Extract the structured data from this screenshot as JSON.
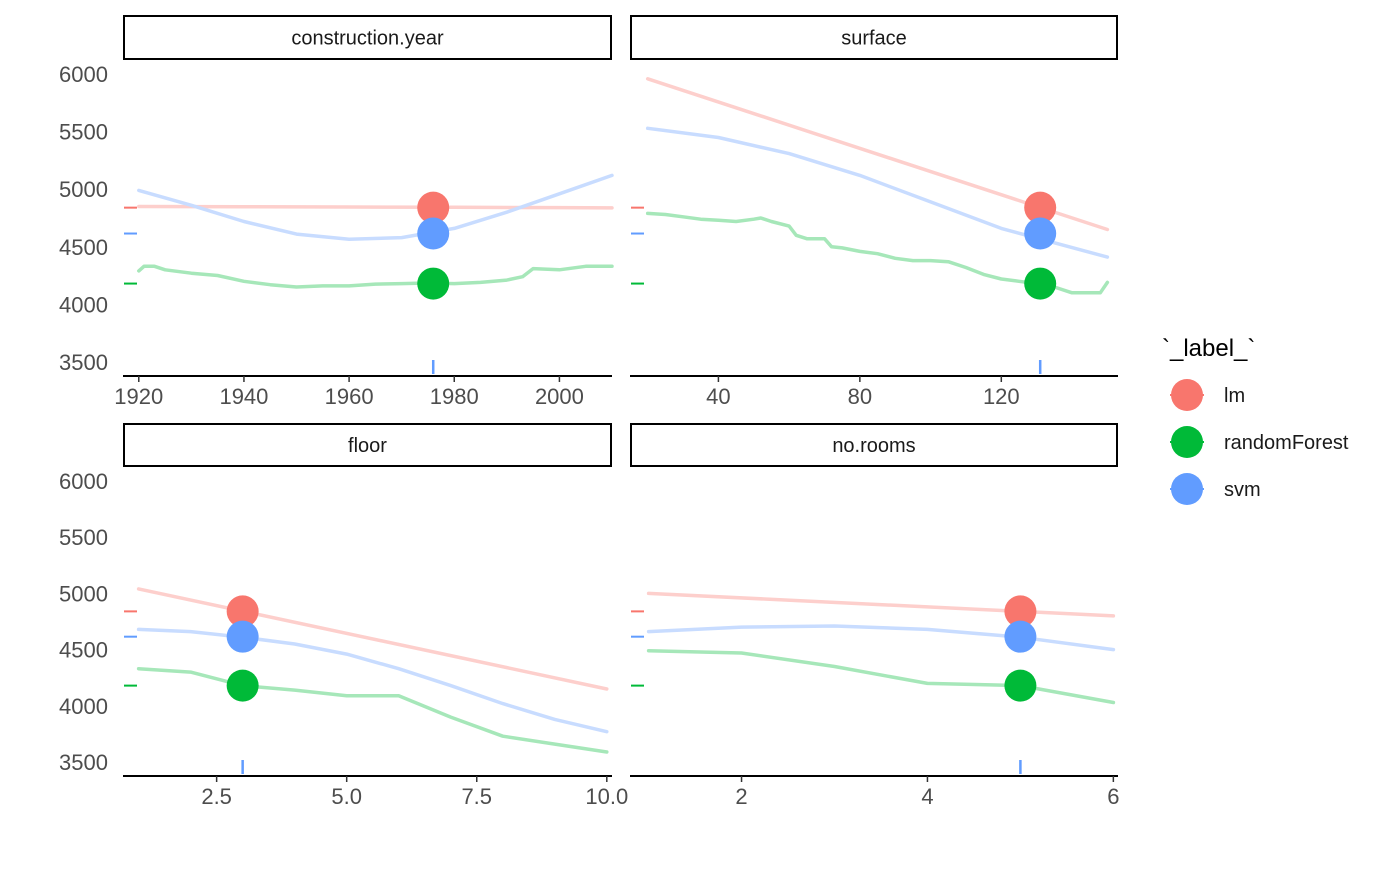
{
  "chart_data": {
    "type": "line",
    "y_axis": {
      "ylim": [
        3500,
        6000
      ],
      "ticks": [
        3500,
        4000,
        4500,
        5000,
        5500,
        6000
      ]
    },
    "legend": {
      "title": "`_label_`",
      "placement": "right",
      "entries": [
        {
          "name": "lm",
          "color": "#F8766D"
        },
        {
          "name": "randomForest",
          "color": "#00BA38"
        },
        {
          "name": "svm",
          "color": "#619CFF"
        }
      ]
    },
    "panels": [
      {
        "title": "construction.year",
        "xlim": [
          1917,
          2010
        ],
        "x_ticks": [
          1920,
          1940,
          1960,
          1980,
          2000
        ],
        "x_tick_labels": [
          "1920",
          "1940",
          "1960",
          "1980",
          "2000"
        ],
        "observation_x": 1976,
        "series": [
          {
            "name": "lm",
            "x": [
              1920,
              1940,
              1960,
              1980,
              2000,
              2010
            ],
            "y": [
              4850,
              4848,
              4846,
              4843,
              4840,
              4838
            ]
          },
          {
            "name": "svm",
            "x": [
              1920,
              1930,
              1940,
              1950,
              1960,
              1970,
              1980,
              1990,
              2000,
              2010
            ],
            "y": [
              4990,
              4860,
              4720,
              4610,
              4565,
              4580,
              4660,
              4800,
              4960,
              5120
            ]
          },
          {
            "name": "randomForest",
            "x": [
              1920,
              1921,
              1923,
              1925,
              1930,
              1935,
              1940,
              1945,
              1950,
              1955,
              1960,
              1965,
              1970,
              1975,
              1980,
              1985,
              1990,
              1993,
              1995,
              2000,
              2005,
              2010
            ],
            "y": [
              4290,
              4330,
              4330,
              4300,
              4270,
              4250,
              4200,
              4170,
              4150,
              4160,
              4160,
              4175,
              4180,
              4185,
              4180,
              4190,
              4210,
              4240,
              4310,
              4300,
              4330,
              4330
            ]
          }
        ],
        "points": [
          {
            "name": "lm",
            "x": 1976,
            "y": 4840
          },
          {
            "name": "svm",
            "x": 1976,
            "y": 4615
          },
          {
            "name": "randomForest",
            "x": 1976,
            "y": 4180
          }
        ]
      },
      {
        "title": "surface",
        "xlim": [
          15,
          153
        ],
        "x_ticks": [
          40,
          80,
          120
        ],
        "x_tick_labels": [
          "40",
          "80",
          "120"
        ],
        "observation_x": 131,
        "series": [
          {
            "name": "lm",
            "x": [
              20,
              150
            ],
            "y": [
              5960,
              4650
            ]
          },
          {
            "name": "svm",
            "x": [
              20,
              40,
              60,
              80,
              100,
              120,
              150
            ],
            "y": [
              5530,
              5450,
              5310,
              5120,
              4890,
              4660,
              4410
            ]
          },
          {
            "name": "randomForest",
            "x": [
              20,
              25,
              30,
              35,
              40,
              45,
              50,
              52,
              55,
              60,
              62,
              65,
              70,
              72,
              75,
              80,
              85,
              90,
              95,
              100,
              105,
              110,
              115,
              120,
              125,
              130,
              135,
              140,
              145,
              148,
              150
            ],
            "y": [
              4790,
              4780,
              4760,
              4740,
              4730,
              4720,
              4740,
              4750,
              4720,
              4680,
              4600,
              4570,
              4570,
              4500,
              4490,
              4460,
              4440,
              4400,
              4380,
              4380,
              4370,
              4320,
              4260,
              4220,
              4200,
              4180,
              4150,
              4100,
              4100,
              4100,
              4190
            ]
          }
        ],
        "points": [
          {
            "name": "lm",
            "x": 131,
            "y": 4840
          },
          {
            "name": "svm",
            "x": 131,
            "y": 4615
          },
          {
            "name": "randomForest",
            "x": 131,
            "y": 4180
          }
        ]
      },
      {
        "title": "floor",
        "xlim": [
          0.7,
          10.1
        ],
        "x_ticks": [
          2.5,
          5.0,
          7.5,
          10.0
        ],
        "x_tick_labels": [
          "2.5",
          "5.0",
          "7.5",
          "10.0"
        ],
        "observation_x": 3,
        "series": [
          {
            "name": "lm",
            "x": [
              1,
              10
            ],
            "y": [
              5040,
              4150
            ]
          },
          {
            "name": "svm",
            "x": [
              1,
              2,
              3,
              4,
              5,
              6,
              7,
              8,
              9,
              10
            ],
            "y": [
              4680,
              4660,
              4610,
              4550,
              4460,
              4330,
              4180,
              4020,
              3880,
              3770
            ]
          },
          {
            "name": "randomForest",
            "x": [
              1,
              2,
              3,
              4,
              5,
              6,
              7,
              8,
              9,
              10
            ],
            "y": [
              4330,
              4300,
              4180,
              4140,
              4090,
              4090,
              3900,
              3730,
              3660,
              3590
            ]
          }
        ],
        "points": [
          {
            "name": "lm",
            "x": 3,
            "y": 4840
          },
          {
            "name": "svm",
            "x": 3,
            "y": 4615
          },
          {
            "name": "randomForest",
            "x": 3,
            "y": 4180
          }
        ]
      },
      {
        "title": "no.rooms",
        "xlim": [
          0.8,
          6.05
        ],
        "x_ticks": [
          2,
          4,
          6
        ],
        "x_tick_labels": [
          "2",
          "4",
          "6"
        ],
        "observation_x": 5,
        "series": [
          {
            "name": "lm",
            "x": [
              1,
              6
            ],
            "y": [
              5000,
              4800
            ]
          },
          {
            "name": "svm",
            "x": [
              1,
              2,
              3,
              4,
              5,
              6
            ],
            "y": [
              4660,
              4700,
              4710,
              4680,
              4610,
              4500
            ]
          },
          {
            "name": "randomForest",
            "x": [
              1,
              2,
              3,
              4,
              5,
              6
            ],
            "y": [
              4490,
              4470,
              4350,
              4200,
              4180,
              4030
            ]
          }
        ],
        "points": [
          {
            "name": "lm",
            "x": 5,
            "y": 4840
          },
          {
            "name": "svm",
            "x": 5,
            "y": 4615
          },
          {
            "name": "randomForest",
            "x": 5,
            "y": 4180
          }
        ]
      }
    ]
  }
}
